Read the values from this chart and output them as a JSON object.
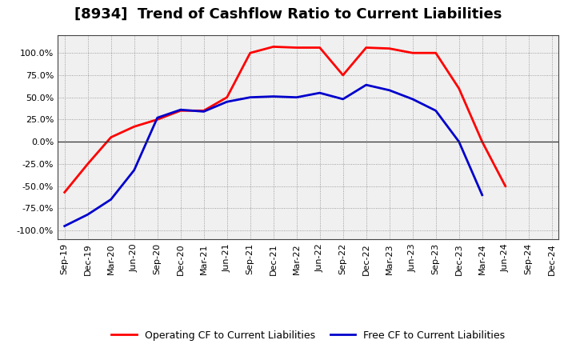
{
  "title": "[8934]  Trend of Cashflow Ratio to Current Liabilities",
  "x_labels": [
    "Sep-19",
    "Dec-19",
    "Mar-20",
    "Jun-20",
    "Sep-20",
    "Dec-20",
    "Mar-21",
    "Jun-21",
    "Sep-21",
    "Dec-21",
    "Mar-22",
    "Jun-22",
    "Sep-22",
    "Dec-22",
    "Mar-23",
    "Jun-23",
    "Sep-23",
    "Dec-23",
    "Mar-24",
    "Jun-24",
    "Sep-24",
    "Dec-24"
  ],
  "operating_cf": [
    -57,
    -25,
    5,
    17,
    25,
    35,
    35,
    50,
    100,
    107,
    106,
    106,
    75,
    106,
    105,
    100,
    100,
    60,
    0,
    -50,
    null,
    null
  ],
  "free_cf": [
    -95,
    -82,
    -65,
    -32,
    27,
    36,
    34,
    45,
    50,
    51,
    50,
    55,
    48,
    64,
    58,
    48,
    35,
    0,
    -60,
    null,
    null,
    null
  ],
  "operating_color": "#ff0000",
  "free_color": "#0000cc",
  "ylim": [
    -110,
    120
  ],
  "yticks": [
    -100,
    -75,
    -50,
    -25,
    0,
    25,
    50,
    75,
    100
  ],
  "background_color": "#ffffff",
  "plot_bg_color": "#f0f0f0",
  "grid_color": "#888888",
  "legend_operating": "Operating CF to Current Liabilities",
  "legend_free": "Free CF to Current Liabilities",
  "title_fontsize": 13,
  "tick_fontsize": 8,
  "legend_fontsize": 9
}
